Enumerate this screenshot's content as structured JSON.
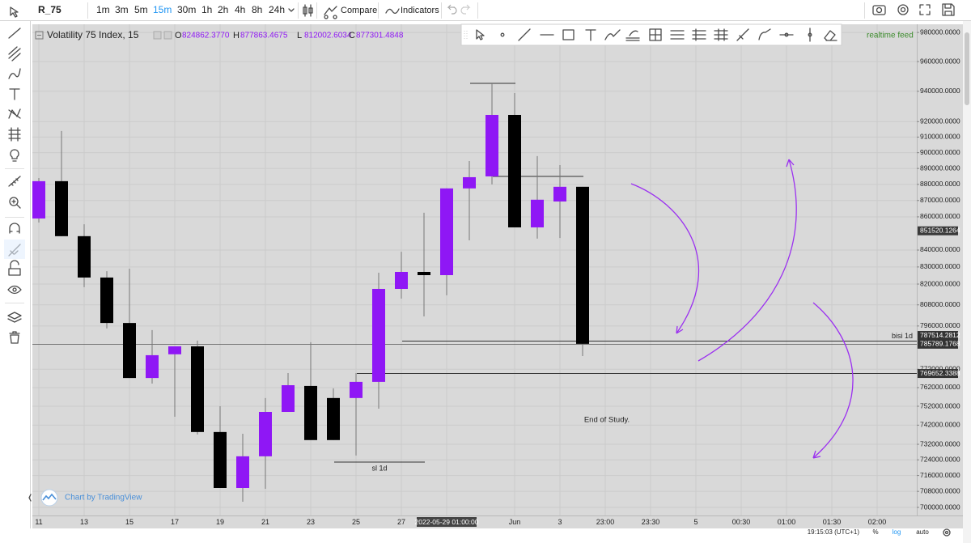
{
  "toolbar": {
    "symbol": "R_75",
    "intervals": [
      {
        "label": "1m"
      },
      {
        "label": "3m"
      },
      {
        "label": "5m"
      },
      {
        "label": "15m",
        "active": true
      },
      {
        "label": "30m"
      },
      {
        "label": "1h"
      },
      {
        "label": "2h"
      },
      {
        "label": "4h"
      },
      {
        "label": "8h"
      },
      {
        "label": "24h"
      }
    ],
    "compare": "Compare",
    "indicators": "Indicators"
  },
  "legend": {
    "title": "Volatility 75 Index, 15",
    "ohlc": [
      {
        "key": "O",
        "value": "824862.3770"
      },
      {
        "key": "H",
        "value": "877863.4675"
      },
      {
        "key": "L",
        "value": "812002.6034"
      },
      {
        "key": "C",
        "value": "877301.4848"
      }
    ],
    "feed": "realtime feed"
  },
  "watermark": "Chart by TradingView",
  "status_bar": {
    "time": "19:15:03 (UTC+1)",
    "percent": "%",
    "log": "log",
    "auto": "auto"
  },
  "chart_data": {
    "type": "candlestick",
    "log_scale": true,
    "grid": true,
    "up_color": "#8f17f5",
    "down_color": "#000000",
    "categories": [
      "11",
      null,
      "13",
      null,
      "15",
      null,
      "17",
      null,
      "19",
      null,
      "21",
      null,
      "23",
      null,
      "25",
      null,
      "27",
      null,
      "2022-05-29 01:00:00",
      null,
      null,
      "Jun",
      null,
      "3",
      null,
      "23:00",
      null,
      "23:30",
      null,
      "5",
      null,
      "00:30",
      null,
      "01:00",
      null,
      "01:30",
      null,
      "02:00"
    ],
    "crosshair_category": 18,
    "open": [
      859000,
      882000,
      848300,
      823800,
      797700,
      767200,
      780200,
      784600,
      738400,
      709700,
      725800,
      749000,
      762900,
      756400,
      756400,
      765100,
      817200,
      827100,
      825200,
      877500,
      885000,
      924400,
      853600,
      869400,
      878500,
      null,
      null,
      null,
      null,
      null,
      null,
      null,
      null,
      null,
      null,
      null,
      null,
      null
    ],
    "high": [
      884000,
      913900,
      855500,
      827500,
      829000,
      793700,
      784600,
      787800,
      752000,
      737500,
      756400,
      769900,
      786900,
      761600,
      769900,
      826600,
      839000,
      862500,
      877500,
      894700,
      945300,
      938800,
      897800,
      892100,
      878500,
      null,
      null,
      null,
      null,
      null,
      null,
      null,
      null,
      null,
      null,
      null,
      null,
      null
    ],
    "low": [
      856500,
      848300,
      818200,
      794600,
      767200,
      764200,
      746400,
      737100,
      709700,
      702800,
      709300,
      749000,
      734200,
      734200,
      726200,
      750700,
      811600,
      801400,
      813500,
      845800,
      880000,
      853600,
      846800,
      847200,
      779200,
      null,
      null,
      null,
      null,
      null,
      null,
      null,
      null,
      null,
      null,
      null,
      null,
      null
    ],
    "close": [
      882000,
      848300,
      823800,
      797700,
      767200,
      779700,
      784600,
      738400,
      709700,
      725800,
      749000,
      763300,
      734200,
      734200,
      765100,
      817200,
      827100,
      825200,
      877500,
      884500,
      924400,
      853600,
      870500,
      878500,
      786000,
      null,
      null,
      null,
      null,
      null,
      null,
      null,
      null,
      null,
      null,
      null,
      null,
      null
    ],
    "ylim": [
      696000,
      985700
    ],
    "yticks": [
      {
        "value": 980000,
        "label": "980000.0000"
      },
      {
        "value": 960000,
        "label": "960000.0000"
      },
      {
        "value": 940000,
        "label": "940000.0000"
      },
      {
        "value": 920000,
        "label": "920000.0000"
      },
      {
        "value": 910000,
        "label": "910000.0000"
      },
      {
        "value": 900000,
        "label": "900000.0000"
      },
      {
        "value": 890000,
        "label": "890000.0000"
      },
      {
        "value": 880000,
        "label": "880000.0000"
      },
      {
        "value": 870000,
        "label": "870000.0000"
      },
      {
        "value": 860000,
        "label": "860000.0000"
      },
      {
        "value": 840000,
        "label": "840000.0000"
      },
      {
        "value": 830000,
        "label": "830000.0000"
      },
      {
        "value": 820000,
        "label": "820000.0000"
      },
      {
        "value": 808000,
        "label": "808000.0000"
      },
      {
        "value": 796000,
        "label": "796000.0000"
      },
      {
        "value": 772000,
        "label": "772000.0000"
      },
      {
        "value": 762000,
        "label": "762000.0000"
      },
      {
        "value": 752000,
        "label": "752000.0000"
      },
      {
        "value": 742000,
        "label": "742000.0000"
      },
      {
        "value": 732000,
        "label": "732000.0000"
      },
      {
        "value": 724000,
        "label": "724000.0000"
      },
      {
        "value": 716000,
        "label": "716000.0000"
      },
      {
        "value": 708000,
        "label": "708000.0000"
      },
      {
        "value": 700000,
        "label": "700000.0000"
      }
    ],
    "last_price": {
      "value": 851520.1264,
      "label": "851520.1264"
    },
    "crosshair_price": {
      "value": 785789.1768,
      "label": "785789.1768"
    },
    "horizontal_lines": {
      "values": [
        945300,
        885000,
        787514.2812,
        769652.3388,
        722850
      ],
      "value_labels": [
        null,
        null,
        "787514.2812",
        "769652.3388",
        null
      ],
      "texts": [
        null,
        null,
        "bisi 1d",
        null,
        "sl 1d"
      ]
    },
    "annotation": "End of Study."
  }
}
